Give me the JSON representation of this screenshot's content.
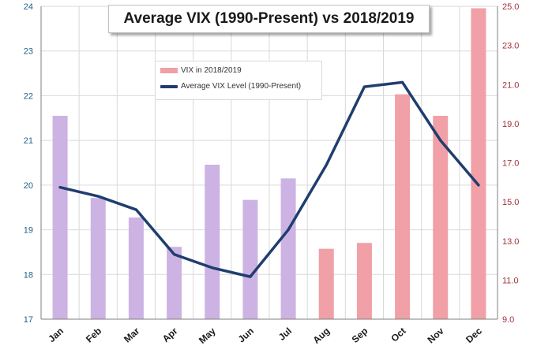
{
  "chart_data": {
    "type": "bar+line",
    "title": "Average VIX (1990-Present) vs 2018/2019",
    "categories": [
      "Jan",
      "Feb",
      "Mar",
      "Apr",
      "May",
      "Jun",
      "Jul",
      "Aug",
      "Sep",
      "Oct",
      "Nov",
      "Dec"
    ],
    "series": [
      {
        "name": "VIX in 2018/2019",
        "type": "bar",
        "axis": "right",
        "values": [
          19.4,
          15.2,
          14.2,
          12.7,
          16.9,
          15.1,
          16.2,
          12.6,
          12.9,
          20.5,
          19.4,
          24.9
        ],
        "colors": [
          "#cdb3e3",
          "#cdb3e3",
          "#cdb3e3",
          "#cdb3e3",
          "#cdb3e3",
          "#cdb3e3",
          "#cdb3e3",
          "#f0a0a6",
          "#f0a0a6",
          "#f0a0a6",
          "#f0a0a6",
          "#f0a0a6"
        ]
      },
      {
        "name": "Average VIX Level (1990-Present)",
        "type": "line",
        "axis": "left",
        "values": [
          19.95,
          19.75,
          19.45,
          18.45,
          18.15,
          17.95,
          19.0,
          20.45,
          22.2,
          22.3,
          21.0,
          20.0
        ],
        "color": "#1f3e6e"
      }
    ],
    "y_left": {
      "min": 17,
      "max": 24,
      "ticks": [
        "17",
        "18",
        "19",
        "20",
        "21",
        "22",
        "23",
        "24"
      ],
      "tick_color": "#1f5f8b"
    },
    "y_right": {
      "min": 9,
      "max": 25,
      "ticks": [
        "9.0",
        "11.0",
        "13.0",
        "15.0",
        "17.0",
        "19.0",
        "21.0",
        "23.0",
        "25.0"
      ],
      "tick_color": "#a0323c"
    },
    "legend": {
      "position": "upper-left",
      "entries": [
        "VIX in 2018/2019",
        "Average VIX Level (1990-Present)"
      ]
    },
    "grid": true
  }
}
